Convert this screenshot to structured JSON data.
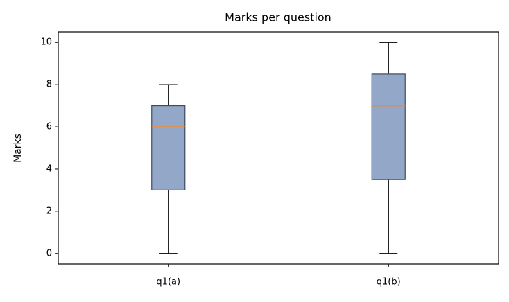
{
  "chart_data": {
    "type": "box",
    "title": "Marks per question",
    "y_label": "Marks",
    "categories": [
      "q1(a)",
      "q1(b)"
    ],
    "boxes": [
      {
        "min": 0,
        "q1": 3,
        "median": 6,
        "q3": 7,
        "max": 8
      },
      {
        "min": 0,
        "q1": 3.5,
        "median": 7,
        "q3": 8.5,
        "max": 10
      }
    ],
    "box_color": "#93a8c9",
    "edge_color": "#3d4a63",
    "median_color": "#f08a32",
    "ylim": [
      -0.5,
      10.5
    ],
    "yticks": [
      0,
      2,
      4,
      6,
      8,
      10
    ],
    "grid": false
  }
}
